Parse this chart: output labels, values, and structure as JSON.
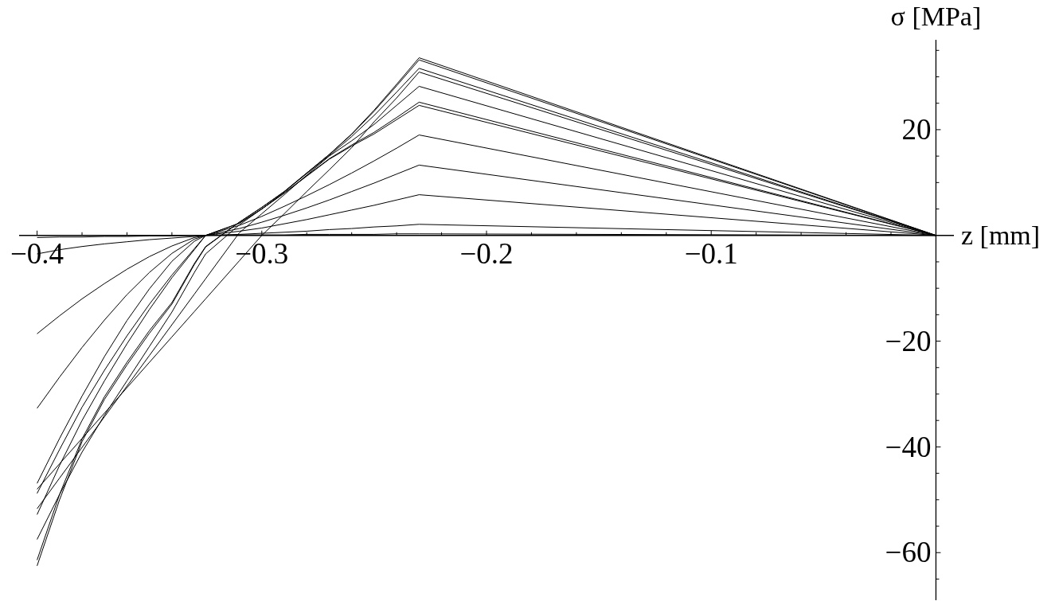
{
  "chart_data": {
    "type": "line",
    "xlabel": "z [mm]",
    "ylabel": "σ [MPa]",
    "line_style": "solid",
    "x": [
      -0.4,
      -0.39,
      -0.38,
      -0.37,
      -0.36,
      -0.35,
      -0.34,
      -0.33,
      -0.325,
      -0.31,
      -0.3,
      -0.29,
      -0.28,
      -0.27,
      -0.26,
      -0.25,
      -0.24,
      -0.23,
      0
    ],
    "series": [
      {
        "color": "#000000",
        "values": [
          -0.4,
          -0.3,
          -0.3,
          -0.2,
          -0.2,
          -0.1,
          -0.1,
          0,
          0,
          0.1,
          0.1,
          0.1,
          0.2,
          0.2,
          0.2,
          0.2,
          0.3,
          0.3,
          0
        ]
      },
      {
        "color": "#000000",
        "values": [
          -3.5,
          -2.7,
          -2.1,
          -1.6,
          -1.2,
          -0.8,
          -0.5,
          -0.2,
          0,
          0.2,
          0.4,
          0.6,
          0.8,
          1.1,
          1.3,
          1.6,
          1.8,
          2.1,
          0
        ]
      },
      {
        "color": "#000000",
        "values": [
          -18.6,
          -15.2,
          -12.0,
          -9.1,
          -6.4,
          -4.0,
          -2.0,
          -0.4,
          0,
          0.8,
          1.4,
          2.2,
          3.0,
          3.9,
          4.8,
          5.7,
          6.7,
          7.7,
          0
        ]
      },
      {
        "color": "#000000",
        "values": [
          -32.7,
          -26.8,
          -21.2,
          -16.0,
          -11.2,
          -7.0,
          -3.4,
          -0.7,
          0,
          1.3,
          2.5,
          3.8,
          5.2,
          6.7,
          8.3,
          9.9,
          11.6,
          13.3,
          0
        ]
      },
      {
        "color": "#000000",
        "values": [
          -46.9,
          -38.4,
          -30.4,
          -22.9,
          -16.1,
          -10.1,
          -4.9,
          -1.1,
          0,
          1.9,
          3.6,
          5.5,
          7.5,
          9.6,
          11.8,
          14.1,
          16.5,
          19.0,
          0
        ]
      },
      {
        "color": "#000000",
        "values": [
          -52.8,
          -43.5,
          -35,
          -27.5,
          -20.5,
          -14,
          -8,
          -2.7,
          0,
          2.3,
          5.0,
          8.0,
          11.2,
          14.4,
          16.9,
          19.2,
          21.9,
          24.6,
          0
        ]
      },
      {
        "color": "#000000",
        "values": [
          -48.8,
          -40.5,
          -32.5,
          -25.5,
          -19,
          -13,
          -7.5,
          -2.5,
          0,
          2.3,
          5.0,
          8.0,
          11.3,
          14.5,
          17.1,
          19.5,
          22.3,
          25.2,
          0
        ]
      },
      {
        "color": "#000000",
        "values": [
          -51.7,
          -45.9,
          -40.1,
          -34.3,
          -28.5,
          -22.7,
          -16.9,
          -11.1,
          -8.2,
          0.5,
          4.1,
          7.7,
          11.4,
          15.0,
          17.9,
          21.0,
          24.6,
          28.2,
          0
        ]
      },
      {
        "color": "#000000",
        "values": [
          -48.0,
          -43.2,
          -38.4,
          -33.6,
          -28.8,
          -24.0,
          -19.2,
          -14.4,
          -12.0,
          -4.8,
          0,
          4.1,
          8.3,
          12.4,
          16.6,
          21.5,
          26.0,
          30.9,
          0
        ]
      },
      {
        "color": "#000000",
        "values": [
          -57.5,
          -49,
          -41,
          -34,
          -27.5,
          -21,
          -14.5,
          -7,
          -3.5,
          2.0,
          5.0,
          8.2,
          11.7,
          15.1,
          18.7,
          22.7,
          27.1,
          31.6,
          0
        ]
      },
      {
        "color": "#000000",
        "values": [
          -61.4,
          -49,
          -38.5,
          -30.5,
          -24,
          -18,
          -12.7,
          -5.3,
          -2.1,
          2.5,
          5.3,
          8.3,
          11.8,
          15.3,
          19.1,
          23.5,
          28.3,
          33.2,
          0
        ]
      },
      {
        "color": "#000000",
        "values": [
          -62.5,
          -50,
          -39,
          -31,
          -24.5,
          -18.5,
          -13,
          -5.5,
          -2.2,
          2.5,
          5.3,
          8.3,
          11.8,
          15.3,
          19.2,
          23.7,
          28.6,
          33.6,
          0
        ]
      }
    ],
    "xlim": [
      -0.408,
      0.008
    ],
    "ylim": [
      -69,
      37
    ],
    "xticks": [
      {
        "value": -0.4,
        "label": "−0.4"
      },
      {
        "value": -0.38,
        "label": null
      },
      {
        "value": -0.36,
        "label": null
      },
      {
        "value": -0.34,
        "label": null
      },
      {
        "value": -0.32,
        "label": null
      },
      {
        "value": -0.3,
        "label": "−0.3"
      },
      {
        "value": -0.28,
        "label": null
      },
      {
        "value": -0.26,
        "label": null
      },
      {
        "value": -0.24,
        "label": null
      },
      {
        "value": -0.22,
        "label": null
      },
      {
        "value": -0.2,
        "label": "−0.2"
      },
      {
        "value": -0.18,
        "label": null
      },
      {
        "value": -0.16,
        "label": null
      },
      {
        "value": -0.14,
        "label": null
      },
      {
        "value": -0.12,
        "label": null
      },
      {
        "value": -0.1,
        "label": "−0.1"
      },
      {
        "value": -0.08,
        "label": null
      },
      {
        "value": -0.06,
        "label": null
      },
      {
        "value": -0.04,
        "label": null
      },
      {
        "value": -0.02,
        "label": null
      }
    ],
    "yticks": [
      {
        "value": 35,
        "label": null
      },
      {
        "value": 30,
        "label": null
      },
      {
        "value": 25,
        "label": null
      },
      20,
      {
        "value": 15,
        "label": null
      },
      {
        "value": 10,
        "label": null
      },
      {
        "value": 5,
        "label": null
      },
      {
        "value": -5,
        "label": null
      },
      {
        "value": -10,
        "label": null
      },
      {
        "value": -15,
        "label": null
      },
      {
        "value": -20,
        "label": "−20"
      },
      {
        "value": -25,
        "label": null
      },
      {
        "value": -30,
        "label": null
      },
      {
        "value": -35,
        "label": null
      },
      {
        "value": -40,
        "label": "−40"
      },
      {
        "value": -45,
        "label": null
      },
      {
        "value": -50,
        "label": null
      },
      {
        "value": -55,
        "label": null
      },
      {
        "value": -60,
        "label": "−60"
      },
      {
        "value": -65,
        "label": null
      }
    ]
  }
}
